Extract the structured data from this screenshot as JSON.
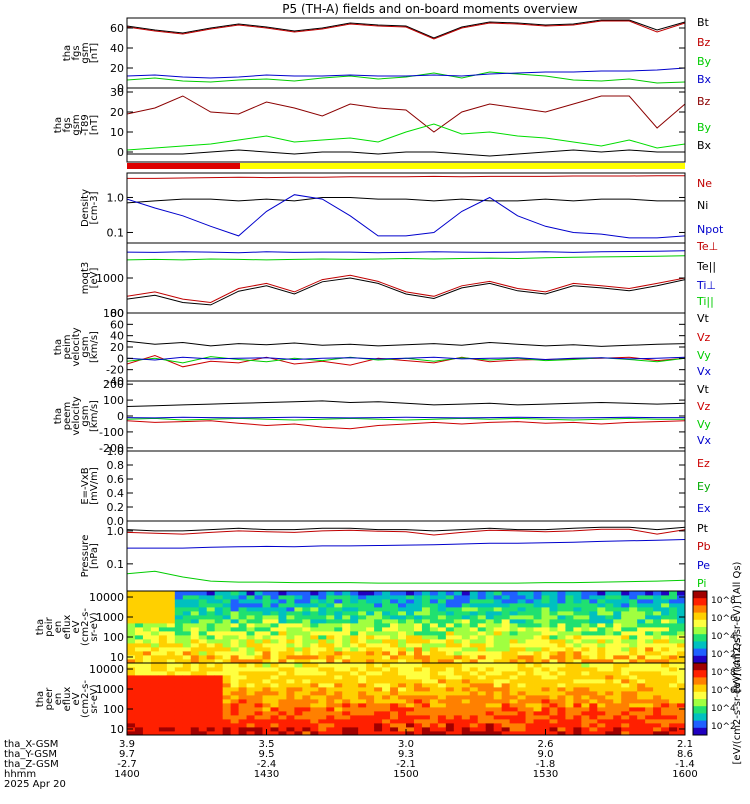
{
  "title": "P5 (TH-A) fields and on-board moments overview",
  "footer": {
    "row_labels": [
      "tha_X-GSM",
      "tha_Y-GSM",
      "tha_Z-GSM",
      "hhmm",
      "2025 Apr 20"
    ],
    "columns": [
      [
        "3.9",
        "9.7",
        "-2.7",
        "1400"
      ],
      [
        "3.5",
        "9.5",
        "-2.4",
        "1430"
      ],
      [
        "3.0",
        "9.3",
        "-2.1",
        "1500"
      ],
      [
        "2.6",
        "9.0",
        "-1.8",
        "1530"
      ],
      [
        "2.1",
        "8.6",
        "-1.4",
        "1600"
      ]
    ]
  },
  "colorbars": {
    "spectrogram_1_label": "[eV/(cm2-s-sr-eV)] (All Qs)",
    "spectrogram_2_label": "[eV/(cm2-s-sr-eV)] (All Qs)",
    "ticks": [
      "10^8",
      "10^6",
      "10^4",
      "10^2"
    ],
    "colors": [
      "#a00000",
      "#ff2000",
      "#ff8000",
      "#ffd000",
      "#ffff40",
      "#a0ff40",
      "#20e070",
      "#00c0c0",
      "#2060ff",
      "#2000c0"
    ]
  },
  "chart_data": {
    "type": "line",
    "x_range": [
      "14:00",
      "16:00"
    ],
    "x_ticks": [
      "1400",
      "1430",
      "1500",
      "1530",
      "1600"
    ],
    "panels": [
      {
        "ylabel": [
          "tha",
          "fgs",
          "gsm",
          "[nT]"
        ],
        "yticks": [
          "60",
          "40",
          "20",
          "0"
        ],
        "ylim": [
          0,
          70
        ],
        "scale": "linear",
        "series": [
          {
            "name": "Bt",
            "color": "#000000",
            "values": [
              62,
              58,
              55,
              60,
              64,
              61,
              57,
              60,
              65,
              63,
              62,
              50,
              61,
              66,
              65,
              63,
              64,
              68,
              68,
              58,
              66
            ]
          },
          {
            "name": "Bz",
            "color": "#c00000",
            "values": [
              61,
              57,
              54,
              59,
              63,
              60,
              56,
              59,
              64,
              62,
              61,
              49,
              60,
              65,
              64,
              62,
              63,
              67,
              67,
              56,
              65
            ]
          },
          {
            "name": "By",
            "color": "#00cc00",
            "values": [
              8,
              10,
              7,
              6,
              8,
              9,
              7,
              10,
              12,
              9,
              11,
              15,
              10,
              16,
              14,
              12,
              8,
              7,
              9,
              5,
              6
            ]
          },
          {
            "name": "Bx",
            "color": "#0000cc",
            "values": [
              12,
              13,
              11,
              10,
              11,
              13,
              12,
              12,
              13,
              12,
              12,
              13,
              12,
              14,
              15,
              16,
              16,
              17,
              17,
              18,
              20
            ]
          }
        ]
      },
      {
        "ylabel": [
          "tha",
          "fgs",
          "gsm",
          "-T89",
          "[nT]"
        ],
        "yticks": [
          "30",
          "20",
          "10",
          "0"
        ],
        "ylim": [
          -5,
          32
        ],
        "scale": "linear",
        "series": [
          {
            "name": "Bz",
            "color": "#8b0000",
            "values": [
              19,
              22,
              28,
              20,
              19,
              25,
              22,
              18,
              24,
              22,
              21,
              10,
              20,
              24,
              22,
              20,
              24,
              28,
              28,
              12,
              24
            ]
          },
          {
            "name": "By",
            "color": "#00dd00",
            "values": [
              1,
              2,
              3,
              4,
              6,
              8,
              5,
              6,
              7,
              5,
              10,
              14,
              9,
              10,
              8,
              7,
              5,
              3,
              6,
              2,
              4
            ]
          },
          {
            "name": "Bx",
            "color": "#000000",
            "values": [
              -1,
              -1,
              -1,
              0,
              1,
              0,
              -1,
              0,
              0,
              -1,
              0,
              0,
              -1,
              -2,
              -1,
              0,
              1,
              0,
              1,
              0,
              0
            ]
          }
        ]
      },
      {
        "ylabel": [
          "Density",
          "[cm-3]"
        ],
        "yticks": [
          "1.0",
          "0.1"
        ],
        "ylim": [
          0.05,
          5
        ],
        "scale": "log",
        "series": [
          {
            "name": "Ne",
            "color": "#c00000",
            "values": [
              3.5,
              3.5,
              3.6,
              3.7,
              3.8,
              3.7,
              3.8,
              3.8,
              3.9,
              3.9,
              3.9,
              4.0,
              3.9,
              4.0,
              4.0,
              4.0,
              4.1,
              4.1,
              4.1,
              4.2,
              4.2
            ]
          },
          {
            "name": "Ni",
            "color": "#000000",
            "values": [
              0.7,
              0.8,
              0.9,
              0.9,
              0.8,
              0.9,
              0.8,
              1.0,
              1.0,
              0.9,
              0.9,
              0.8,
              0.9,
              0.8,
              0.8,
              0.9,
              0.8,
              0.9,
              0.9,
              0.8,
              0.8
            ]
          },
          {
            "name": "Npot",
            "color": "#0000cc",
            "values": [
              0.9,
              0.5,
              0.3,
              0.15,
              0.08,
              0.4,
              1.2,
              0.9,
              0.3,
              0.08,
              0.08,
              0.1,
              0.4,
              1.0,
              0.3,
              0.15,
              0.1,
              0.09,
              0.07,
              0.07,
              0.08
            ]
          }
        ]
      },
      {
        "ylabel": [
          "moqt3",
          "[eV]"
        ],
        "yticks": [
          "1000",
          "100"
        ],
        "ylim": [
          100,
          10000
        ],
        "scale": "log",
        "series": [
          {
            "name": "Te⊥",
            "color": "#c00000",
            "values": [
              300,
              400,
              250,
              200,
              500,
              700,
              400,
              900,
              1200,
              800,
              400,
              300,
              600,
              800,
              500,
              400,
              700,
              600,
              500,
              700,
              1000
            ]
          },
          {
            "name": "Te||",
            "color": "#000000",
            "values": [
              250,
              320,
              200,
              170,
              420,
              600,
              350,
              780,
              1000,
              700,
              350,
              260,
              520,
              700,
              430,
              350,
              600,
              520,
              430,
              600,
              900
            ]
          },
          {
            "name": "Ti⊥",
            "color": "#0000cc",
            "values": [
              5500,
              5400,
              5600,
              5500,
              5300,
              5600,
              5400,
              5500,
              5500,
              5300,
              5400,
              5600,
              5500,
              5400,
              5500,
              5600,
              5400,
              5600,
              5700,
              5800,
              6000
            ]
          },
          {
            "name": "Ti||",
            "color": "#00cc00",
            "values": [
              3300,
              3400,
              3300,
              3500,
              3400,
              3300,
              3400,
              3500,
              3400,
              3500,
              3600,
              3500,
              3600,
              3700,
              3600,
              3800,
              3900,
              4000,
              4100,
              4200,
              4300
            ]
          }
        ]
      },
      {
        "ylabel": [
          "tha",
          "peim",
          "velocity",
          "gsm",
          "[km/s]"
        ],
        "yticks": [
          "80",
          "60",
          "40",
          "20",
          "0",
          "-20",
          "-40"
        ],
        "ylim": [
          -40,
          80
        ],
        "scale": "linear",
        "series": [
          {
            "name": "Vt",
            "color": "#000000",
            "values": [
              30,
              25,
              28,
              22,
              26,
              24,
              27,
              23,
              25,
              22,
              24,
              26,
              23,
              28,
              25,
              22,
              24,
              21,
              23,
              25,
              26
            ]
          },
          {
            "name": "Vz",
            "color": "#cc0000",
            "values": [
              -10,
              5,
              -15,
              -5,
              -8,
              2,
              -10,
              -5,
              -12,
              0,
              -4,
              -8,
              2,
              -6,
              -3,
              -2,
              -1,
              0,
              2,
              -4,
              0
            ]
          },
          {
            "name": "Vy",
            "color": "#00cc00",
            "values": [
              -5,
              0,
              -8,
              3,
              -2,
              -6,
              0,
              -4,
              2,
              -3,
              0,
              -5,
              1,
              -3,
              0,
              -4,
              -2,
              1,
              -2,
              -6,
              0
            ]
          },
          {
            "name": "Vx",
            "color": "#0000cc",
            "values": [
              0,
              -3,
              2,
              -1,
              0,
              1,
              -2,
              0,
              1,
              -1,
              0,
              2,
              -1,
              0,
              1,
              -2,
              0,
              1,
              -1,
              0,
              2
            ]
          }
        ]
      },
      {
        "ylabel": [
          "tha",
          "peem",
          "velocity",
          "gsm",
          "[km/s]"
        ],
        "yticks": [
          "200",
          "100",
          "0",
          "-100",
          "-200"
        ],
        "ylim": [
          -220,
          220
        ],
        "scale": "linear",
        "series": [
          {
            "name": "Vt",
            "color": "#000000",
            "values": [
              60,
              65,
              70,
              75,
              80,
              85,
              90,
              95,
              85,
              90,
              80,
              70,
              75,
              80,
              70,
              75,
              80,
              85,
              80,
              75,
              80
            ]
          },
          {
            "name": "Vz",
            "color": "#cc0000",
            "values": [
              -30,
              -40,
              -35,
              -30,
              -45,
              -60,
              -50,
              -70,
              -80,
              -60,
              -50,
              -40,
              -50,
              -40,
              -35,
              -45,
              -40,
              -50,
              -40,
              -35,
              -30
            ]
          },
          {
            "name": "Vy",
            "color": "#00cc00",
            "values": [
              -20,
              -15,
              -25,
              -20,
              -15,
              -20,
              -25,
              -20,
              -15,
              -20,
              -25,
              -20,
              -15,
              -20,
              -15,
              -20,
              -25,
              -20,
              -15,
              -20,
              -20
            ]
          },
          {
            "name": "Vx",
            "color": "#0000cc",
            "values": [
              -10,
              -12,
              -8,
              -10,
              -12,
              -10,
              -8,
              -10,
              -12,
              -10,
              -8,
              -10,
              -12,
              -10,
              -8,
              -10,
              -12,
              -10,
              -8,
              -10,
              -10
            ]
          }
        ]
      },
      {
        "ylabel": [
          "E=-VxB",
          "[mV/m]"
        ],
        "yticks": [
          "1.0",
          "0.8",
          "0.6",
          "0.4",
          "0.2",
          "0.0"
        ],
        "ylim": [
          0,
          1
        ],
        "scale": "linear",
        "series": [
          {
            "name": "Ez",
            "color": "#cc0000",
            "values": []
          },
          {
            "name": "Ey",
            "color": "#00aa00",
            "values": []
          },
          {
            "name": "Ex",
            "color": "#0000cc",
            "values": []
          }
        ]
      },
      {
        "ylabel": [
          "Pressure",
          "[nPa]"
        ],
        "yticks": [
          "1.0",
          "0.1"
        ],
        "ylim": [
          0.015,
          2
        ],
        "scale": "log",
        "series": [
          {
            "name": "Pt",
            "color": "#000000",
            "values": [
              1.1,
              1.0,
              1.0,
              1.1,
              1.2,
              1.1,
              1.1,
              1.2,
              1.2,
              1.1,
              1.1,
              1.0,
              1.1,
              1.2,
              1.1,
              1.1,
              1.2,
              1.3,
              1.3,
              1.1,
              1.3
            ]
          },
          {
            "name": "Pb",
            "color": "#c00000",
            "values": [
              0.9,
              0.85,
              0.8,
              0.9,
              1.0,
              0.95,
              0.9,
              1.0,
              1.05,
              0.98,
              0.95,
              0.75,
              0.9,
              1.05,
              1.0,
              0.95,
              1.0,
              1.12,
              1.12,
              0.8,
              1.1
            ]
          },
          {
            "name": "Pe",
            "color": "#0000cc",
            "values": [
              0.3,
              0.3,
              0.3,
              0.32,
              0.33,
              0.34,
              0.33,
              0.35,
              0.35,
              0.36,
              0.37,
              0.38,
              0.4,
              0.42,
              0.42,
              0.44,
              0.45,
              0.48,
              0.5,
              0.52,
              0.55
            ]
          },
          {
            "name": "Pi",
            "color": "#00cc00",
            "values": [
              0.05,
              0.06,
              0.04,
              0.03,
              0.028,
              0.028,
              0.027,
              0.027,
              0.027,
              0.026,
              0.026,
              0.026,
              0.026,
              0.026,
              0.026,
              0.027,
              0.027,
              0.028,
              0.029,
              0.03,
              0.032
            ]
          }
        ]
      },
      {
        "ylabel": [
          "tha",
          "peir",
          "en",
          "eflux",
          "eV",
          "(cm2-s-",
          "sr-eV)"
        ],
        "yticks": [
          "10000",
          "1000",
          "100",
          "10"
        ],
        "ylim": [
          5,
          20000
        ],
        "scale": "log",
        "series": []
      },
      {
        "ylabel": [
          "tha",
          "peer",
          "en",
          "eflux",
          "eV",
          "(cm2-s-",
          "sr-eV)"
        ],
        "yticks": [
          "10000",
          "1000",
          "100",
          "10"
        ],
        "ylim": [
          5,
          20000
        ],
        "scale": "log",
        "series": []
      }
    ]
  }
}
